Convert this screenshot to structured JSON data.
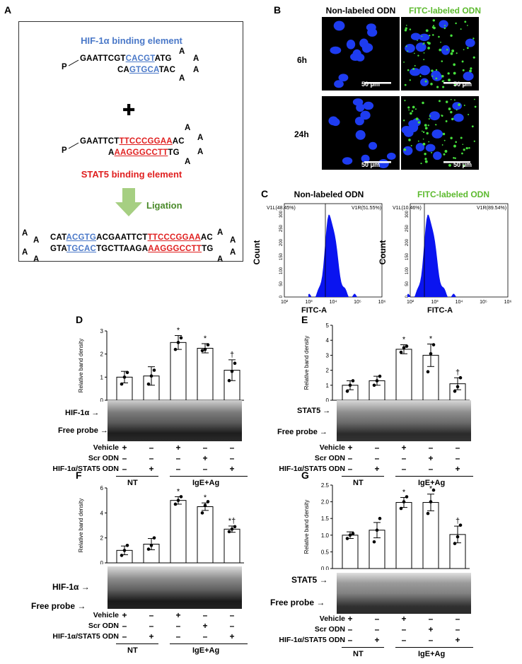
{
  "panels": {
    "A": {
      "label": "A",
      "hif_title": "HIF-1α binding element",
      "stat_title": "STAT5 binding element",
      "plus": "✚",
      "ligation": "Ligation",
      "hif_top_1": "GAATTCGT",
      "hif_top_2": "CACGT",
      "hif_top_3": "ATG",
      "hif_bot_1": "CA",
      "hif_bot_2": "GTGCA",
      "hif_bot_3": "TAC",
      "stat_top_1": "GAATTCT",
      "stat_top_2": "TTCCCGGAA",
      "stat_top_3": "AC",
      "stat_bot_1": "A",
      "stat_bot_2": "AAGGGCCTT",
      "stat_bot_3": "TG",
      "lig_top_1": "CAT",
      "lig_top_2": "ACGTG",
      "lig_top_3": "ACGAATTCT",
      "lig_top_4": "TTCCCGGAA",
      "lig_top_5": "AC",
      "lig_bot_1": "GTA",
      "lig_bot_2": "TGCAC",
      "lig_bot_3": "TGCTTAAGA",
      "lig_bot_4": "AAGGGCCTT",
      "lig_bot_5": "TG",
      "p": "P",
      "a": "A"
    },
    "B": {
      "label": "B",
      "col1": "Non-labeled ODN",
      "col2": "FITC-labeled ODN",
      "row1": "6h",
      "row2": "24h",
      "scale": "50 μm"
    },
    "C": {
      "label": "C",
      "left_title": "Non-labeled ODN",
      "right_title": "FITC-labeled ODN",
      "ylabel": "Count",
      "xlabel": "FITC-A",
      "left_v1l": "V1L(48.45%)",
      "left_v1r": "V1R(51.55%)",
      "right_v1l": "V1L(10.46%)",
      "right_v1r": "V1R(89.54%)",
      "yticks": [
        "0",
        "50",
        "100",
        "150",
        "200",
        "250",
        "300"
      ],
      "xticks": [
        "10²",
        "10³",
        "10⁴",
        "10⁵",
        "10⁶"
      ]
    },
    "D": {
      "label": "D",
      "band": "HIF-1α →",
      "free": "Free probe →"
    },
    "E": {
      "label": "E",
      "band": "STAT5 →",
      "free": "Free probe →"
    },
    "F": {
      "label": "F",
      "band": "HIF-1α →",
      "free": "Free probe →"
    },
    "G": {
      "label": "G",
      "band": "STAT5 →",
      "free": "Free probe →"
    }
  },
  "conditions": {
    "rows": [
      "Vehicle",
      "Scr ODN",
      "HIF-1α/STAT5 ODN"
    ],
    "signs": [
      [
        "+",
        "–",
        "+",
        "–",
        "–"
      ],
      [
        "–",
        "–",
        "–",
        "+",
        "–"
      ],
      [
        "–",
        "+",
        "–",
        "–",
        "+"
      ]
    ],
    "group1": "NT",
    "group2": "IgE+Ag"
  },
  "chart_data": [
    {
      "panel": "D",
      "type": "bar",
      "ylabel": "Relative band density",
      "ylim": [
        0,
        3
      ],
      "yticks": [
        0,
        1,
        2,
        3
      ],
      "categories": [
        "NT Vehicle",
        "NT HIF-1α/STAT5 ODN",
        "IgE+Ag Vehicle",
        "IgE+Ag Scr ODN",
        "IgE+Ag HIF-1α/STAT5 ODN"
      ],
      "values": [
        1.0,
        1.05,
        2.5,
        2.25,
        1.3
      ],
      "errors": [
        0.25,
        0.4,
        0.3,
        0.2,
        0.45
      ],
      "points": [
        [
          0.7,
          1.0,
          1.2
        ],
        [
          0.7,
          1.05,
          1.3
        ],
        [
          2.2,
          2.5,
          2.7
        ],
        [
          2.15,
          2.2,
          2.4
        ],
        [
          0.85,
          1.25,
          1.6
        ]
      ],
      "marks": [
        "",
        "",
        "*",
        "*",
        "†"
      ]
    },
    {
      "panel": "E",
      "type": "bar",
      "ylabel": "Relative band density",
      "ylim": [
        0,
        5
      ],
      "yticks": [
        0,
        1,
        2,
        3,
        4,
        5
      ],
      "categories": [
        "NT Vehicle",
        "NT HIF-1α/STAT5 ODN",
        "IgE+Ag Vehicle",
        "IgE+Ag Scr ODN",
        "IgE+Ag HIF-1α/STAT5 ODN"
      ],
      "values": [
        1.0,
        1.3,
        3.4,
        3.0,
        1.1
      ],
      "errors": [
        0.3,
        0.3,
        0.3,
        0.75,
        0.4
      ],
      "points": [
        [
          0.6,
          1.0,
          1.3
        ],
        [
          1.0,
          1.3,
          1.6
        ],
        [
          3.2,
          3.5,
          3.6
        ],
        [
          1.9,
          3.1,
          3.7
        ],
        [
          0.6,
          0.9,
          1.5
        ]
      ],
      "marks": [
        "",
        "",
        "*",
        "*",
        "†"
      ]
    },
    {
      "panel": "F",
      "type": "bar",
      "ylabel": "Relative band density",
      "ylim": [
        0,
        6
      ],
      "yticks": [
        0,
        2,
        4,
        6
      ],
      "categories": [
        "NT Vehicle",
        "NT HIF-1α/STAT5 ODN",
        "IgE+Ag Vehicle",
        "IgE+Ag Scr ODN",
        "IgE+Ag HIF-1α/STAT5 ODN"
      ],
      "values": [
        1.0,
        1.5,
        5.0,
        4.5,
        2.7
      ],
      "errors": [
        0.35,
        0.45,
        0.3,
        0.3,
        0.25
      ],
      "points": [
        [
          0.6,
          1.0,
          1.4
        ],
        [
          1.1,
          1.4,
          2.0
        ],
        [
          4.7,
          5.0,
          5.3
        ],
        [
          4.0,
          4.6,
          4.9
        ],
        [
          2.5,
          2.7,
          2.9
        ]
      ],
      "marks": [
        "",
        "",
        "*",
        "*",
        "*†"
      ]
    },
    {
      "panel": "G",
      "type": "bar",
      "ylabel": "Relative band density",
      "ylim": [
        0,
        2.5
      ],
      "yticks": [
        0,
        0.5,
        1.0,
        1.5,
        2.0,
        2.5
      ],
      "categories": [
        "NT Vehicle",
        "NT HIF-1α/STAT5 ODN",
        "IgE+Ag Vehicle",
        "IgE+Ag Scr ODN",
        "IgE+Ag HIF-1α/STAT5 ODN"
      ],
      "values": [
        1.0,
        1.15,
        1.98,
        1.98,
        1.02
      ],
      "errors": [
        0.1,
        0.23,
        0.15,
        0.25,
        0.25
      ],
      "points": [
        [
          0.9,
          1.0,
          1.05
        ],
        [
          0.8,
          1.15,
          1.5
        ],
        [
          1.8,
          2.0,
          2.15
        ],
        [
          1.65,
          2.0,
          2.35
        ],
        [
          0.75,
          0.95,
          1.3
        ]
      ],
      "marks": [
        "",
        "",
        "*",
        "*",
        "†"
      ]
    }
  ]
}
